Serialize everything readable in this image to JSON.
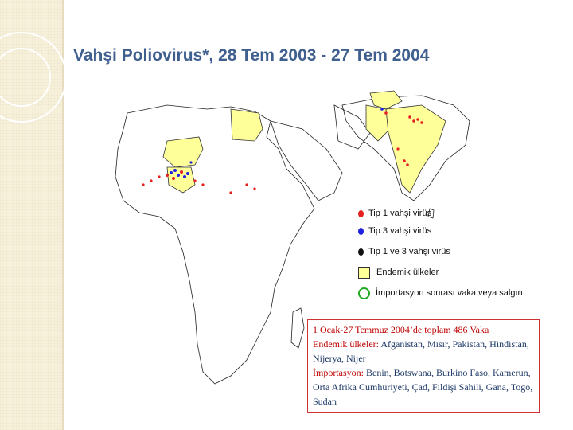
{
  "title": "Vahşi Poliovirus*, 28 Tem 2003 - 27 Tem 2004",
  "legend": {
    "type1": "Tip 1 vahşi virüs",
    "type3": "Tip 3 vahşi virüs",
    "type13": "Tip 1 ve 3 vahşi virüs",
    "endemic": "Endemik ülkeler",
    "importation": "İmportasyon sonrası vaka veya salgın"
  },
  "colors": {
    "type1": "#e52020",
    "type3": "#2020e0",
    "type13": "#111111",
    "endemic": "#ffff99",
    "importation": "#22aa22",
    "title": "#3f5f8f"
  },
  "note": {
    "summary": "1 Ocak-27 Temmuz 2004’de toplam 486 Vaka",
    "endemic_label": "Endemik ülkeler:",
    "endemic_list": "Afganistan, Mısır, Pakistan, Hindistan, Nijerya, Nijer",
    "import_label": "İmportasyon:",
    "import_list": "Benin, Botswana, Burkino Faso, Kamerun, Orta Afrika Cumhuriyeti, Çad, Fildişi Sahili, Gana, Togo, Sudan"
  }
}
